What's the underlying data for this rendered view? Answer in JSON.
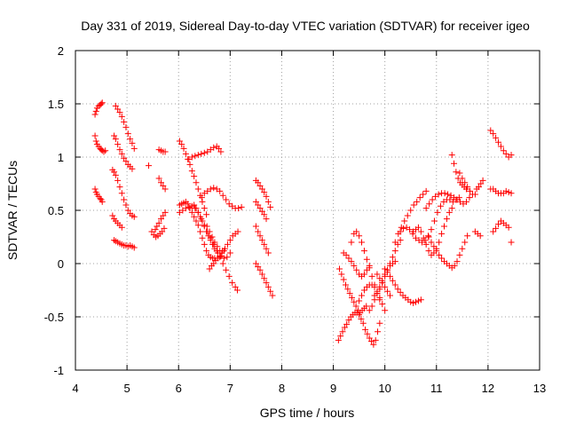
{
  "chart_data": {
    "type": "scatter",
    "title": "Day 331 of 2019, Sidereal Day-to-day VTEC variation (SDTVAR) for receiver igeo",
    "xlabel": "GPS time / hours",
    "ylabel": "SDTVAR / TECUs",
    "xlim": [
      4,
      13
    ],
    "ylim": [
      -1,
      2
    ],
    "x_ticks": [
      "4",
      "5",
      "6",
      "7",
      "8",
      "9",
      "10",
      "11",
      "12",
      "13"
    ],
    "y_ticks": [
      "-1",
      "-0.5",
      "0",
      "0.5",
      "1",
      "1.5",
      "2"
    ],
    "grid": true,
    "marker": "+",
    "color": "#ff0000",
    "series": [
      {
        "name": "s1",
        "x": [
          4.38,
          4.4,
          4.42,
          4.45,
          4.48,
          4.5,
          4.52
        ],
        "y": [
          1.4,
          1.43,
          1.46,
          1.48,
          1.49,
          1.5,
          1.51
        ]
      },
      {
        "name": "s2",
        "x": [
          4.38,
          4.4,
          4.42,
          4.45,
          4.48,
          4.5,
          4.52,
          4.55,
          4.58
        ],
        "y": [
          1.2,
          1.15,
          1.12,
          1.1,
          1.08,
          1.07,
          1.06,
          1.05,
          1.06
        ]
      },
      {
        "name": "s3",
        "x": [
          4.38,
          4.4,
          4.42,
          4.45,
          4.48,
          4.5,
          4.52
        ],
        "y": [
          0.7,
          0.67,
          0.65,
          0.63,
          0.61,
          0.6,
          0.58
        ]
      },
      {
        "name": "s4",
        "x": [
          4.78,
          4.82,
          4.86,
          4.9,
          4.94,
          4.98,
          5.02,
          5.06,
          5.1,
          5.14
        ],
        "y": [
          1.48,
          1.45,
          1.42,
          1.38,
          1.33,
          1.28,
          1.22,
          1.17,
          1.13,
          1.08
        ]
      },
      {
        "name": "s5",
        "x": [
          4.75,
          4.78,
          4.82,
          4.86,
          4.9,
          4.94,
          4.98,
          5.02,
          5.06,
          5.1
        ],
        "y": [
          1.2,
          1.17,
          1.12,
          1.07,
          1.03,
          0.99,
          0.96,
          0.93,
          0.91,
          0.89
        ]
      },
      {
        "name": "s6",
        "x": [
          4.72,
          4.75,
          4.78,
          4.82,
          4.86,
          4.9,
          4.94,
          4.98,
          5.02,
          5.06,
          5.1,
          5.14
        ],
        "y": [
          0.88,
          0.86,
          0.83,
          0.78,
          0.72,
          0.66,
          0.6,
          0.55,
          0.5,
          0.47,
          0.45,
          0.44
        ]
      },
      {
        "name": "s7",
        "x": [
          4.72,
          4.75,
          4.78,
          4.82,
          4.86,
          4.9
        ],
        "y": [
          0.45,
          0.42,
          0.4,
          0.38,
          0.36,
          0.34
        ]
      },
      {
        "name": "s8",
        "x": [
          4.75,
          4.78,
          4.82,
          4.86,
          4.9,
          4.94,
          4.98,
          5.02,
          5.06,
          5.1,
          5.14
        ],
        "y": [
          0.22,
          0.21,
          0.2,
          0.19,
          0.18,
          0.17,
          0.17,
          0.16,
          0.17,
          0.16,
          0.15
        ]
      },
      {
        "name": "s9",
        "x": [
          5.42
        ],
        "y": [
          0.92
        ]
      },
      {
        "name": "s10",
        "x": [
          5.48,
          5.52,
          5.56,
          5.6,
          5.64,
          5.68,
          5.72
        ],
        "y": [
          0.3,
          0.27,
          0.25,
          0.26,
          0.28,
          0.3,
          0.33
        ]
      },
      {
        "name": "s11",
        "x": [
          5.55,
          5.58,
          5.62,
          5.66,
          5.7,
          5.74
        ],
        "y": [
          0.32,
          0.35,
          0.38,
          0.42,
          0.45,
          0.48
        ]
      },
      {
        "name": "s12",
        "x": [
          5.62,
          5.66,
          5.7,
          5.74
        ],
        "y": [
          0.8,
          0.76,
          0.73,
          0.7
        ]
      },
      {
        "name": "s13",
        "x": [
          5.62,
          5.66,
          5.7,
          5.74
        ],
        "y": [
          1.07,
          1.06,
          1.05,
          1.05
        ]
      },
      {
        "name": "s14",
        "x": [
          6.02,
          6.06,
          6.1,
          6.14,
          6.18,
          6.22,
          6.26,
          6.3,
          6.34,
          6.38,
          6.42,
          6.46,
          6.5,
          6.54
        ],
        "y": [
          1.15,
          1.12,
          1.08,
          1.03,
          0.98,
          0.93,
          0.87,
          0.82,
          0.76,
          0.7,
          0.64,
          0.58,
          0.52,
          0.46
        ]
      },
      {
        "name": "s15",
        "x": [
          6.2,
          6.26,
          6.32,
          6.38,
          6.44,
          6.5,
          6.56,
          6.62,
          6.68,
          6.74,
          6.78,
          6.82
        ],
        "y": [
          0.98,
          1.0,
          1.01,
          1.02,
          1.03,
          1.04,
          1.05,
          1.07,
          1.09,
          1.1,
          1.08,
          1.05
        ]
      },
      {
        "name": "s16",
        "x": [
          6.02,
          6.06,
          6.1,
          6.14,
          6.18,
          6.22,
          6.26,
          6.3,
          6.34,
          6.38,
          6.42,
          6.46,
          6.5,
          6.54,
          6.58,
          6.62,
          6.66,
          6.7
        ],
        "y": [
          0.55,
          0.56,
          0.57,
          0.58,
          0.56,
          0.52,
          0.48,
          0.44,
          0.4,
          0.36,
          0.3,
          0.24,
          0.18,
          0.12,
          0.08,
          0.06,
          0.05,
          0.05
        ]
      },
      {
        "name": "s17",
        "x": [
          6.02,
          6.08,
          6.14,
          6.2,
          6.26,
          6.32,
          6.38,
          6.44,
          6.5,
          6.56,
          6.62,
          6.68,
          6.74,
          6.8,
          6.86,
          6.92,
          6.98,
          7.04,
          7.1,
          7.14
        ],
        "y": [
          0.48,
          0.5,
          0.52,
          0.53,
          0.54,
          0.52,
          0.48,
          0.42,
          0.36,
          0.3,
          0.24,
          0.18,
          0.12,
          0.06,
          0.0,
          -0.06,
          -0.12,
          -0.18,
          -0.22,
          -0.25
        ]
      },
      {
        "name": "s18",
        "x": [
          6.3,
          6.34,
          6.38,
          6.42,
          6.46,
          6.5,
          6.54,
          6.58,
          6.62,
          6.66,
          6.7,
          6.76,
          6.82,
          6.88,
          6.94,
          7.0
        ],
        "y": [
          0.55,
          0.52,
          0.48,
          0.44,
          0.4,
          0.35,
          0.3,
          0.26,
          0.22,
          0.18,
          0.14,
          0.1,
          0.07,
          0.05,
          0.06,
          0.1
        ]
      },
      {
        "name": "s19",
        "x": [
          6.45,
          6.5,
          6.56,
          6.62,
          6.68,
          6.74,
          6.8,
          6.86,
          6.92,
          6.98,
          7.04,
          7.1,
          7.16,
          7.22
        ],
        "y": [
          0.62,
          0.66,
          0.68,
          0.7,
          0.71,
          0.7,
          0.68,
          0.64,
          0.6,
          0.56,
          0.54,
          0.52,
          0.52,
          0.53
        ]
      },
      {
        "name": "s20",
        "x": [
          6.55,
          6.6,
          6.65,
          6.7,
          6.75,
          6.8,
          6.85,
          6.9,
          6.95,
          7.0,
          7.05,
          7.1,
          7.15
        ],
        "y": [
          0.35,
          0.3,
          0.25,
          0.2,
          0.16,
          0.12,
          0.12,
          0.14,
          0.18,
          0.22,
          0.26,
          0.28,
          0.3
        ]
      },
      {
        "name": "s21",
        "x": [
          6.6,
          6.64,
          6.68,
          6.72,
          6.76,
          6.8,
          6.84,
          6.88
        ],
        "y": [
          -0.05,
          -0.02,
          0.0,
          0.03,
          0.05,
          0.07,
          0.1,
          0.12
        ]
      },
      {
        "name": "s22",
        "x": [
          7.5,
          7.54,
          7.58,
          7.62,
          7.66,
          7.7,
          7.74,
          7.78
        ],
        "y": [
          0.78,
          0.76,
          0.73,
          0.7,
          0.67,
          0.63,
          0.58,
          0.53
        ]
      },
      {
        "name": "s23",
        "x": [
          7.5,
          7.54,
          7.58,
          7.62,
          7.66,
          7.7
        ],
        "y": [
          0.58,
          0.55,
          0.52,
          0.49,
          0.46,
          0.42
        ]
      },
      {
        "name": "s24",
        "x": [
          7.5,
          7.54,
          7.58,
          7.62,
          7.66,
          7.7,
          7.74
        ],
        "y": [
          0.35,
          0.3,
          0.26,
          0.22,
          0.18,
          0.14,
          0.1
        ]
      },
      {
        "name": "s25",
        "x": [
          7.5,
          7.54,
          7.58,
          7.62,
          7.66,
          7.7,
          7.74,
          7.78,
          7.82
        ],
        "y": [
          0.0,
          -0.03,
          -0.06,
          -0.1,
          -0.14,
          -0.18,
          -0.22,
          -0.26,
          -0.3
        ]
      },
      {
        "name": "s26",
        "x": [
          9.1,
          9.14,
          9.18,
          9.22,
          9.26,
          9.3,
          9.34,
          9.38,
          9.42,
          9.46,
          9.5,
          9.54,
          9.58,
          9.62,
          9.66,
          9.7,
          9.74,
          9.78,
          9.82,
          9.86,
          9.9
        ],
        "y": [
          -0.72,
          -0.68,
          -0.64,
          -0.6,
          -0.57,
          -0.53,
          -0.5,
          -0.48,
          -0.46,
          -0.46,
          -0.48,
          -0.52,
          -0.56,
          -0.62,
          -0.66,
          -0.7,
          -0.73,
          -0.76,
          -0.72,
          -0.64,
          -0.56
        ]
      },
      {
        "name": "s27",
        "x": [
          9.12,
          9.16,
          9.2,
          9.24,
          9.28,
          9.32,
          9.36,
          9.4,
          9.44,
          9.48,
          9.52,
          9.56,
          9.6,
          9.64
        ],
        "y": [
          -0.05,
          -0.1,
          -0.15,
          -0.2,
          -0.24,
          -0.28,
          -0.32,
          -0.36,
          -0.4,
          -0.44,
          -0.46,
          -0.44,
          -0.42,
          -0.4
        ]
      },
      {
        "name": "s28",
        "x": [
          9.2,
          9.25,
          9.3,
          9.35,
          9.4,
          9.45,
          9.5,
          9.55,
          9.6,
          9.65,
          9.7
        ],
        "y": [
          0.1,
          0.08,
          0.05,
          0.02,
          -0.02,
          -0.06,
          -0.1,
          -0.12,
          -0.1,
          -0.06,
          -0.02
        ]
      },
      {
        "name": "s29",
        "x": [
          9.35,
          9.4,
          9.45,
          9.5,
          9.55,
          9.6,
          9.65,
          9.7,
          9.75,
          9.8,
          9.85,
          9.9
        ],
        "y": [
          0.2,
          0.28,
          0.3,
          0.26,
          0.2,
          0.12,
          0.04,
          -0.04,
          -0.12,
          -0.2,
          -0.28,
          -0.34
        ]
      },
      {
        "name": "s30",
        "x": [
          9.5,
          9.55,
          9.6,
          9.65,
          9.7,
          9.75,
          9.8,
          9.85,
          9.9,
          9.95,
          10.0
        ],
        "y": [
          -0.35,
          -0.3,
          -0.25,
          -0.22,
          -0.2,
          -0.2,
          -0.22,
          -0.26,
          -0.32,
          -0.38,
          -0.44
        ]
      },
      {
        "name": "s31",
        "x": [
          9.7,
          9.75,
          9.8,
          9.85,
          9.9,
          9.95,
          10.0,
          10.05,
          10.1,
          10.15,
          10.2
        ],
        "y": [
          -0.44,
          -0.4,
          -0.34,
          -0.28,
          -0.22,
          -0.16,
          -0.1,
          -0.06,
          -0.02,
          0.0,
          0.02
        ]
      },
      {
        "name": "s32",
        "x": [
          9.8,
          9.85,
          9.9,
          9.95,
          10.0,
          10.05,
          10.1,
          10.15,
          10.2,
          10.25,
          10.3
        ],
        "y": [
          -0.3,
          -0.28,
          -0.24,
          -0.18,
          -0.12,
          -0.06,
          0.0,
          0.06,
          0.12,
          0.18,
          0.22
        ]
      },
      {
        "name": "s33",
        "x": [
          9.85,
          9.9,
          9.95,
          10.0,
          10.05,
          10.1
        ],
        "y": [
          -0.1,
          -0.14,
          -0.18,
          -0.22,
          -0.26,
          -0.3
        ]
      },
      {
        "name": "s34",
        "x": [
          10.0,
          10.05,
          10.1,
          10.15,
          10.2,
          10.25,
          10.3,
          10.35,
          10.4,
          10.45,
          10.5,
          10.55,
          10.6,
          10.65,
          10.7
        ],
        "y": [
          -0.05,
          -0.08,
          -0.12,
          -0.16,
          -0.2,
          -0.24,
          -0.27,
          -0.3,
          -0.32,
          -0.34,
          -0.36,
          -0.37,
          -0.36,
          -0.35,
          -0.34
        ]
      },
      {
        "name": "s35",
        "x": [
          10.2,
          10.26,
          10.32,
          10.38,
          10.44,
          10.5,
          10.56,
          10.62,
          10.68,
          10.74,
          10.8
        ],
        "y": [
          0.2,
          0.28,
          0.34,
          0.4,
          0.45,
          0.5,
          0.55,
          0.58,
          0.62,
          0.65,
          0.68
        ]
      },
      {
        "name": "s36",
        "x": [
          10.3,
          10.36,
          10.42,
          10.48,
          10.54,
          10.6,
          10.66,
          10.72,
          10.78,
          10.84,
          10.9,
          10.96,
          11.02,
          11.08,
          11.14,
          11.2,
          11.26,
          11.32,
          11.38,
          11.44
        ],
        "y": [
          0.3,
          0.33,
          0.34,
          0.32,
          0.28,
          0.24,
          0.22,
          0.2,
          0.22,
          0.26,
          0.32,
          0.4,
          0.48,
          0.54,
          0.58,
          0.6,
          0.6,
          0.58,
          0.6,
          0.62
        ]
      },
      {
        "name": "s37",
        "x": [
          10.55,
          10.6,
          10.65,
          10.7,
          10.75,
          10.8,
          10.85,
          10.9,
          10.95,
          11.0,
          11.05,
          11.1,
          11.15,
          11.2,
          11.25,
          11.3
        ],
        "y": [
          0.3,
          0.32,
          0.34,
          0.3,
          0.24,
          0.18,
          0.12,
          0.08,
          0.1,
          0.14,
          0.2,
          0.28,
          0.35,
          0.42,
          0.48,
          0.52
        ]
      },
      {
        "name": "s38",
        "x": [
          10.8,
          10.86,
          10.92,
          10.98,
          11.04,
          11.1,
          11.16,
          11.22,
          11.28,
          11.34,
          11.4,
          11.46,
          11.52,
          11.58,
          11.64
        ],
        "y": [
          0.52,
          0.56,
          0.6,
          0.63,
          0.65,
          0.66,
          0.66,
          0.65,
          0.64,
          0.62,
          0.6,
          0.58,
          0.56,
          0.58,
          0.62
        ]
      },
      {
        "name": "s39",
        "x": [
          10.85,
          10.9,
          10.95,
          11.0,
          11.05,
          11.1,
          11.15,
          11.2,
          11.25,
          11.3,
          11.35,
          11.4,
          11.45,
          11.5,
          11.55,
          11.6
        ],
        "y": [
          0.25,
          0.2,
          0.16,
          0.12,
          0.08,
          0.05,
          0.02,
          0.0,
          -0.02,
          -0.04,
          -0.02,
          0.02,
          0.08,
          0.14,
          0.2,
          0.26
        ]
      },
      {
        "name": "s40",
        "x": [
          11.3,
          11.34,
          11.38,
          11.42,
          11.46,
          11.5,
          11.54,
          11.58
        ],
        "y": [
          1.02,
          0.94,
          0.86,
          0.8,
          0.76,
          0.74,
          0.72,
          0.7
        ]
      },
      {
        "name": "s41",
        "x": [
          11.45,
          11.5,
          11.55,
          11.6,
          11.65,
          11.7
        ],
        "y": [
          0.85,
          0.8,
          0.76,
          0.72,
          0.68,
          0.65
        ]
      },
      {
        "name": "s42",
        "x": [
          11.75,
          11.78,
          11.82,
          11.86,
          11.9
        ],
        "y": [
          0.65,
          0.7,
          0.72,
          0.75,
          0.78
        ]
      },
      {
        "name": "s43",
        "x": [
          11.75,
          11.8,
          11.85
        ],
        "y": [
          0.3,
          0.28,
          0.26
        ]
      },
      {
        "name": "s44",
        "x": [
          12.05,
          12.1,
          12.15,
          12.2,
          12.25,
          12.3,
          12.35,
          12.4,
          12.45
        ],
        "y": [
          1.25,
          1.22,
          1.18,
          1.14,
          1.1,
          1.06,
          1.03,
          1.0,
          1.02
        ]
      },
      {
        "name": "s45",
        "x": [
          12.05,
          12.1,
          12.15,
          12.2,
          12.25,
          12.3,
          12.35,
          12.4,
          12.45
        ],
        "y": [
          0.7,
          0.7,
          0.68,
          0.66,
          0.66,
          0.66,
          0.68,
          0.67,
          0.66
        ]
      },
      {
        "name": "s46",
        "x": [
          12.1,
          12.15,
          12.2,
          12.25,
          12.3,
          12.35,
          12.4,
          12.45
        ],
        "y": [
          0.3,
          0.33,
          0.37,
          0.4,
          0.38,
          0.36,
          0.34,
          0.2
        ]
      }
    ]
  }
}
